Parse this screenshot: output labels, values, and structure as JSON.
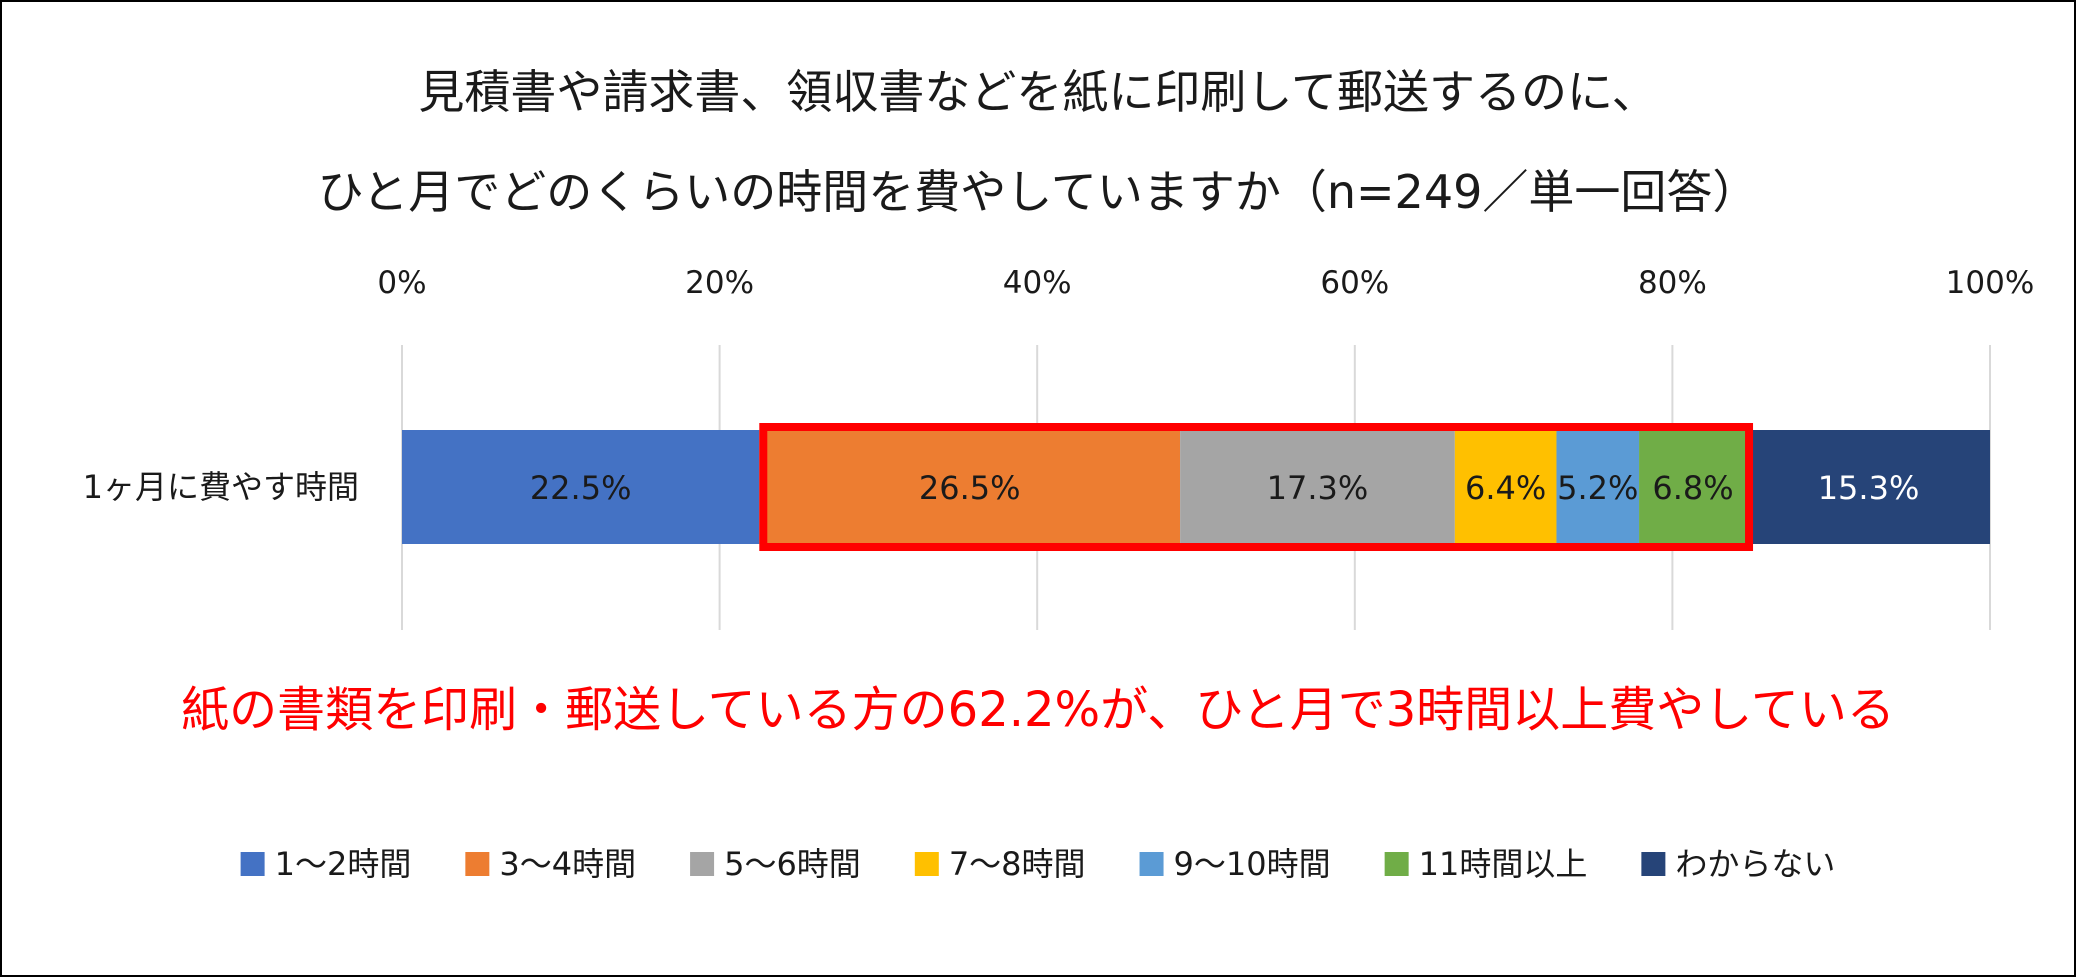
{
  "chart_data": {
    "type": "bar",
    "orientation": "horizontal",
    "stacked": "percent",
    "title_lines": [
      "見積書や請求書、領収書などを紙に印刷して郵送するのに、",
      "ひと月でどのくらいの時間を費やしていますか（n=249／単一回答）"
    ],
    "categories": [
      "1ヶ月に費やす時間"
    ],
    "x_ticks": [
      "0%",
      "20%",
      "40%",
      "60%",
      "80%",
      "100%"
    ],
    "xlim": [
      0,
      100
    ],
    "grid": true,
    "legend_position": "bottom",
    "series": [
      {
        "name": "1〜2時間",
        "values": [
          22.5
        ],
        "label": "22.5%",
        "color": "#4472C4",
        "label_color": "#1a1a1a"
      },
      {
        "name": "3〜4時間",
        "values": [
          26.5
        ],
        "label": "26.5%",
        "color": "#ED7D31",
        "label_color": "#1a1a1a"
      },
      {
        "name": "5〜6時間",
        "values": [
          17.3
        ],
        "label": "17.3%",
        "color": "#A5A5A5",
        "label_color": "#1a1a1a"
      },
      {
        "name": "7〜8時間",
        "values": [
          6.4
        ],
        "label": "6.4%",
        "color": "#FFC000",
        "label_color": "#1a1a1a"
      },
      {
        "name": "9〜10時間",
        "values": [
          5.2
        ],
        "label": "5.2%",
        "color": "#5B9BD5",
        "label_color": "#1a1a1a"
      },
      {
        "name": "11時間以上",
        "values": [
          6.8
        ],
        "label": "6.8%",
        "color": "#70AD47",
        "label_color": "#1a1a1a"
      },
      {
        "name": "わからない",
        "values": [
          15.3
        ],
        "label": "15.3%",
        "color": "#264478",
        "label_color": "#ffffff"
      }
    ],
    "highlight": {
      "series_range": [
        1,
        5
      ],
      "color": "#FF0000"
    },
    "annotation": {
      "text": "紙の書類を印刷・郵送している方の62.2%が、ひと月で3時間以上費やしている",
      "color": "#FF0000"
    }
  }
}
